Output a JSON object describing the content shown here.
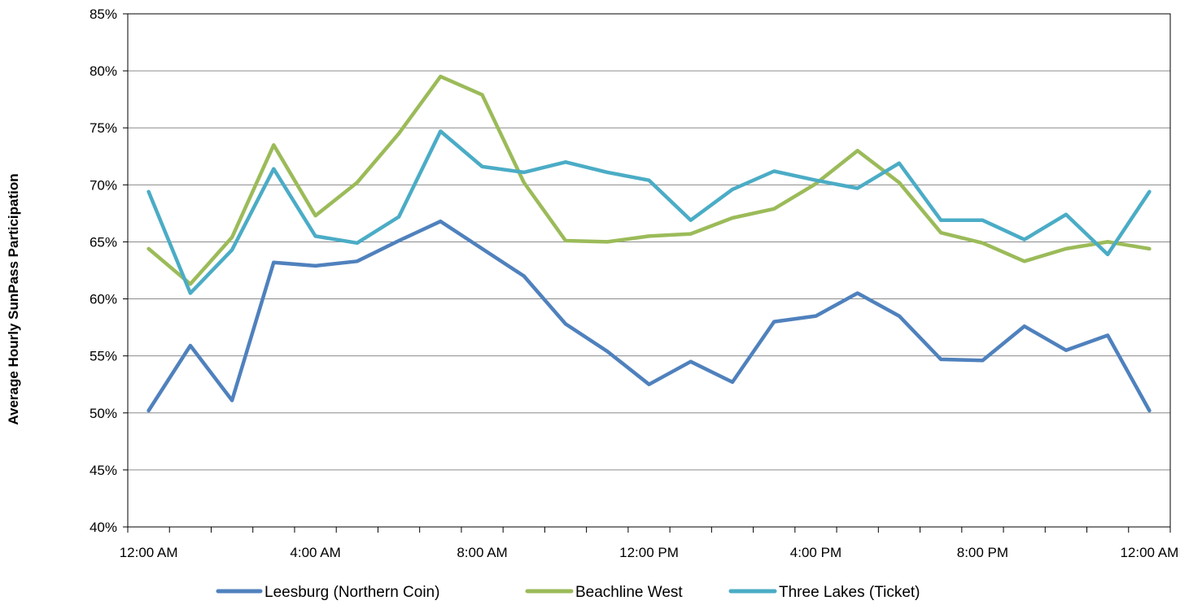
{
  "chart_data": {
    "type": "line",
    "title": "",
    "xlabel": "",
    "ylabel": "Average Hourly SunPass Participation",
    "ylim": [
      40,
      85
    ],
    "y_ticks": [
      "40%",
      "45%",
      "50%",
      "55%",
      "60%",
      "65%",
      "70%",
      "75%",
      "80%",
      "85%"
    ],
    "y_tick_values": [
      40,
      45,
      50,
      55,
      60,
      65,
      70,
      75,
      80,
      85
    ],
    "x_tick_labels": [
      "12:00 AM",
      "4:00 AM",
      "8:00 AM",
      "12:00 PM",
      "4:00 PM",
      "8:00 PM",
      "12:00 AM"
    ],
    "x_tick_label_hours": [
      0,
      4,
      8,
      12,
      16,
      20,
      24
    ],
    "x_hours": [
      0,
      1,
      2,
      3,
      4,
      5,
      6,
      7,
      8,
      9,
      10,
      11,
      12,
      13,
      14,
      15,
      16,
      17,
      18,
      19,
      20,
      21,
      22,
      23,
      24
    ],
    "grid": true,
    "legend_position": "bottom",
    "series": [
      {
        "name": "Leesburg (Northern Coin)",
        "color": "#4F81BD",
        "values": [
          50.2,
          55.9,
          51.1,
          63.2,
          62.9,
          63.3,
          65.1,
          66.8,
          64.4,
          62.0,
          57.8,
          55.4,
          52.5,
          54.5,
          52.7,
          58.0,
          58.5,
          60.5,
          58.5,
          54.7,
          54.6,
          57.6,
          55.5,
          56.8,
          50.2
        ]
      },
      {
        "name": "Beachline West",
        "color": "#9BBB59",
        "values": [
          64.4,
          61.3,
          65.4,
          73.5,
          67.3,
          70.2,
          74.5,
          79.5,
          77.9,
          70.2,
          65.1,
          65.0,
          65.5,
          65.7,
          67.1,
          67.9,
          70.1,
          73.0,
          70.2,
          65.8,
          64.9,
          63.3,
          64.4,
          65.0,
          64.4
        ]
      },
      {
        "name": "Three Lakes (Ticket)",
        "color": "#4BACC6",
        "values": [
          69.4,
          60.5,
          64.3,
          71.4,
          65.5,
          64.9,
          67.2,
          74.7,
          71.6,
          71.1,
          72.0,
          71.1,
          70.4,
          66.9,
          69.6,
          71.2,
          70.4,
          69.7,
          71.9,
          66.9,
          66.9,
          65.2,
          67.4,
          63.9,
          69.4
        ]
      }
    ]
  }
}
